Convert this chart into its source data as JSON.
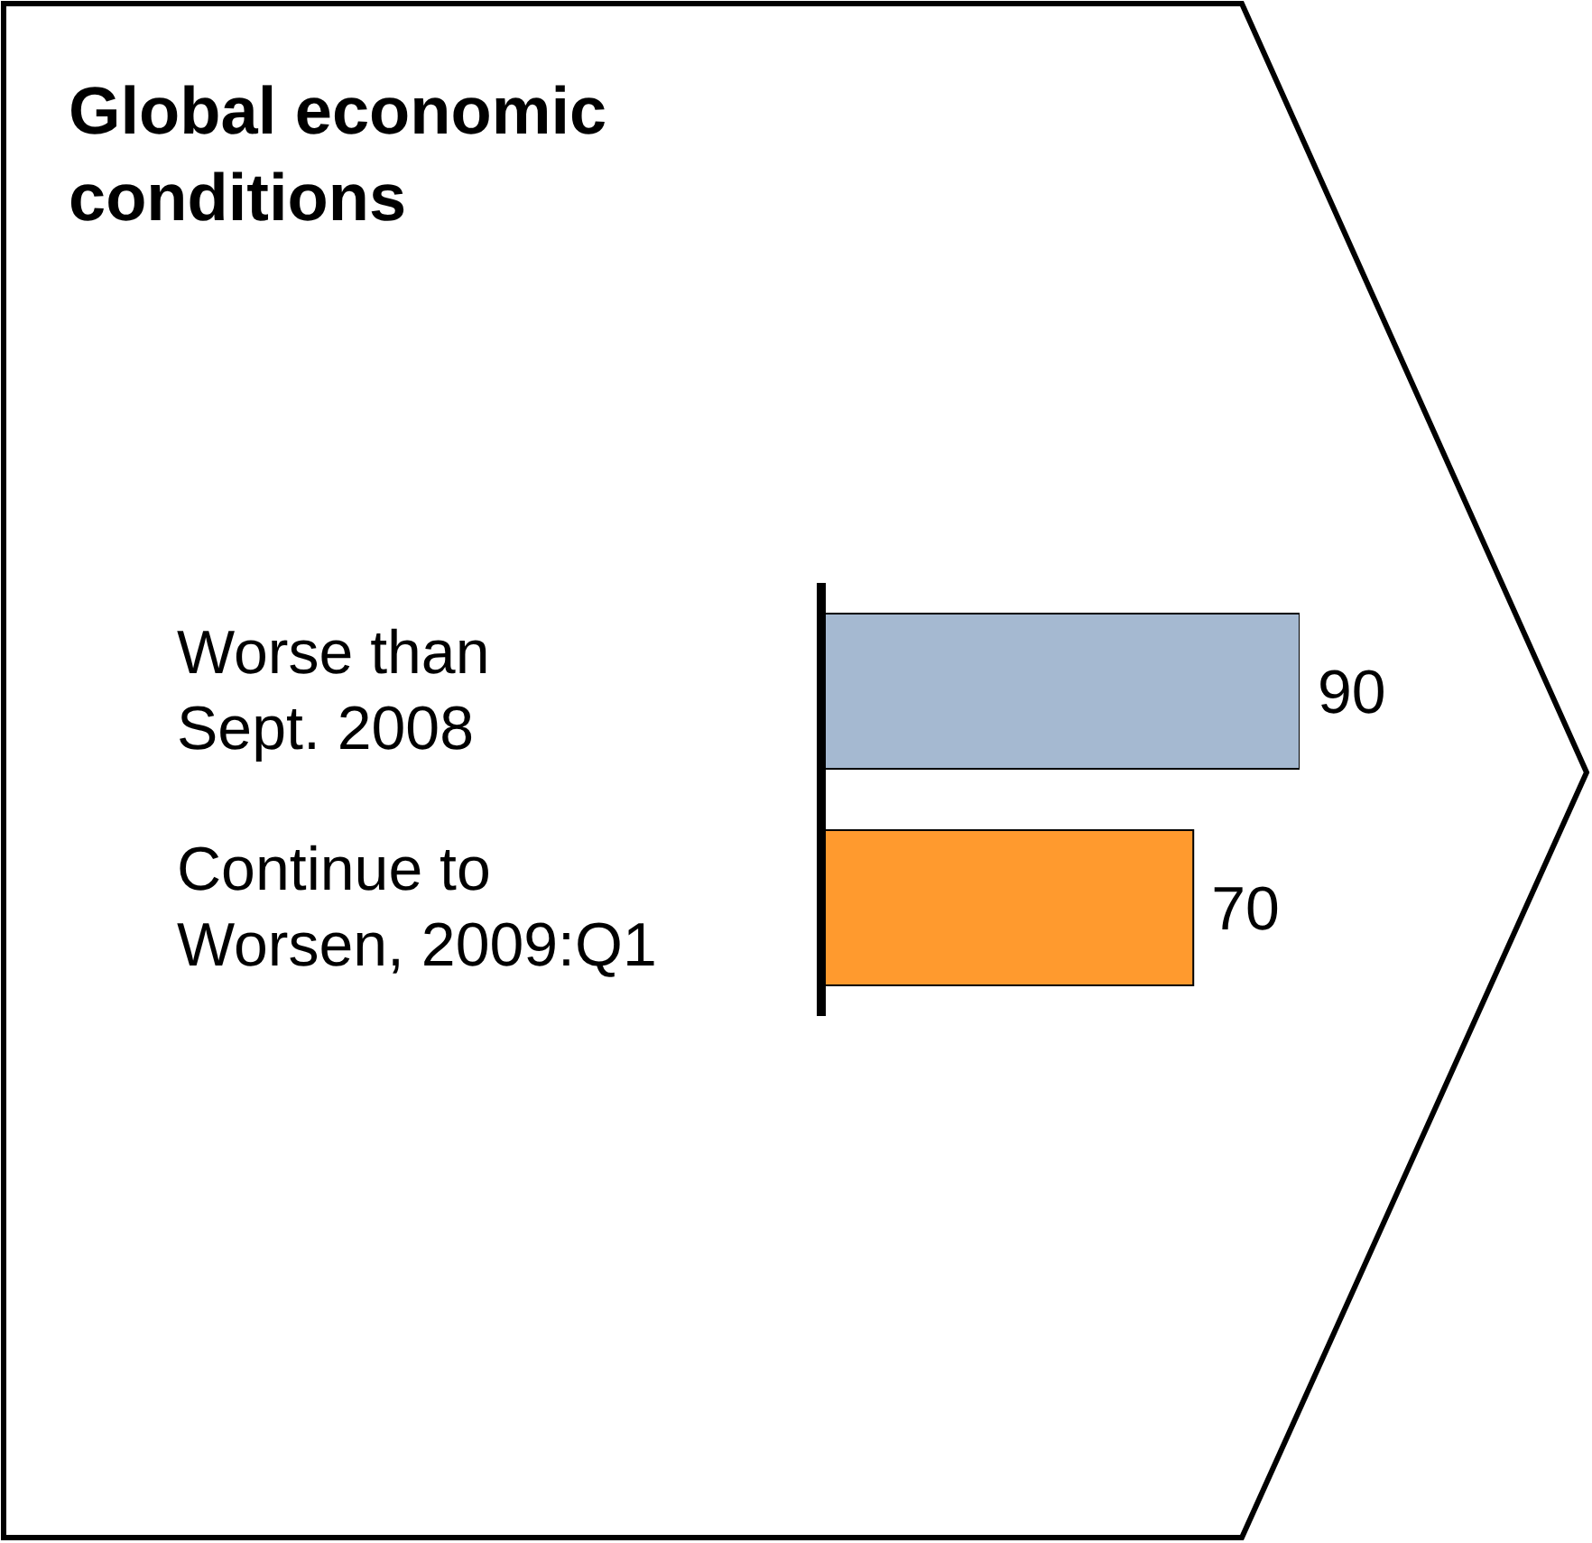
{
  "chart_data": {
    "type": "bar",
    "orientation": "horizontal",
    "title": "Global economic conditions",
    "categories": [
      "Worse than Sept. 2008",
      "Continue to Worsen, 2009:Q1"
    ],
    "values": [
      90,
      70
    ],
    "colors": [
      "#a5b9d1",
      "#ff9a2e"
    ],
    "data_labels": true
  }
}
